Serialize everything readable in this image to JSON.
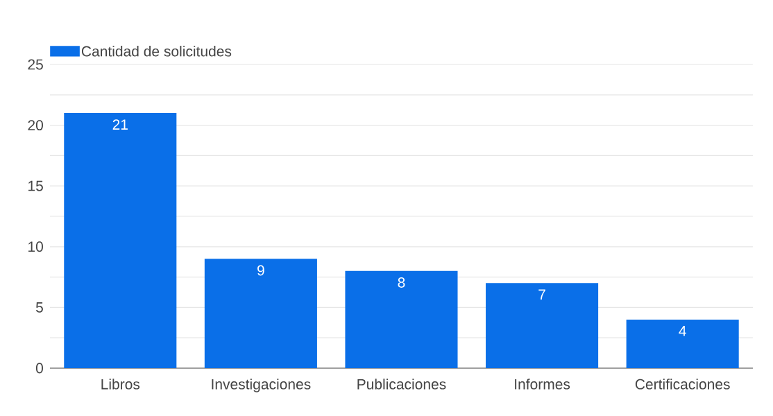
{
  "chart_data": {
    "type": "bar",
    "categories": [
      "Libros",
      "Investigaciones",
      "Publicaciones",
      "Informes",
      "Certificaciones"
    ],
    "series": [
      {
        "name": "Cantidad de solicitudes",
        "color": "#0a6fe8",
        "values": [
          21,
          9,
          8,
          7,
          4
        ]
      }
    ],
    "ylim": [
      0,
      25
    ],
    "yticks": [
      0,
      {
        "value": 2.5,
        "label": null
      },
      5,
      {
        "value": 7.5,
        "label": null
      },
      10,
      {
        "value": 12.5,
        "label": null
      },
      15,
      {
        "value": 17.5,
        "label": null
      },
      20,
      {
        "value": 22.5,
        "label": null
      },
      25
    ],
    "grid": "y",
    "legend": "top left",
    "data_labels": true
  }
}
